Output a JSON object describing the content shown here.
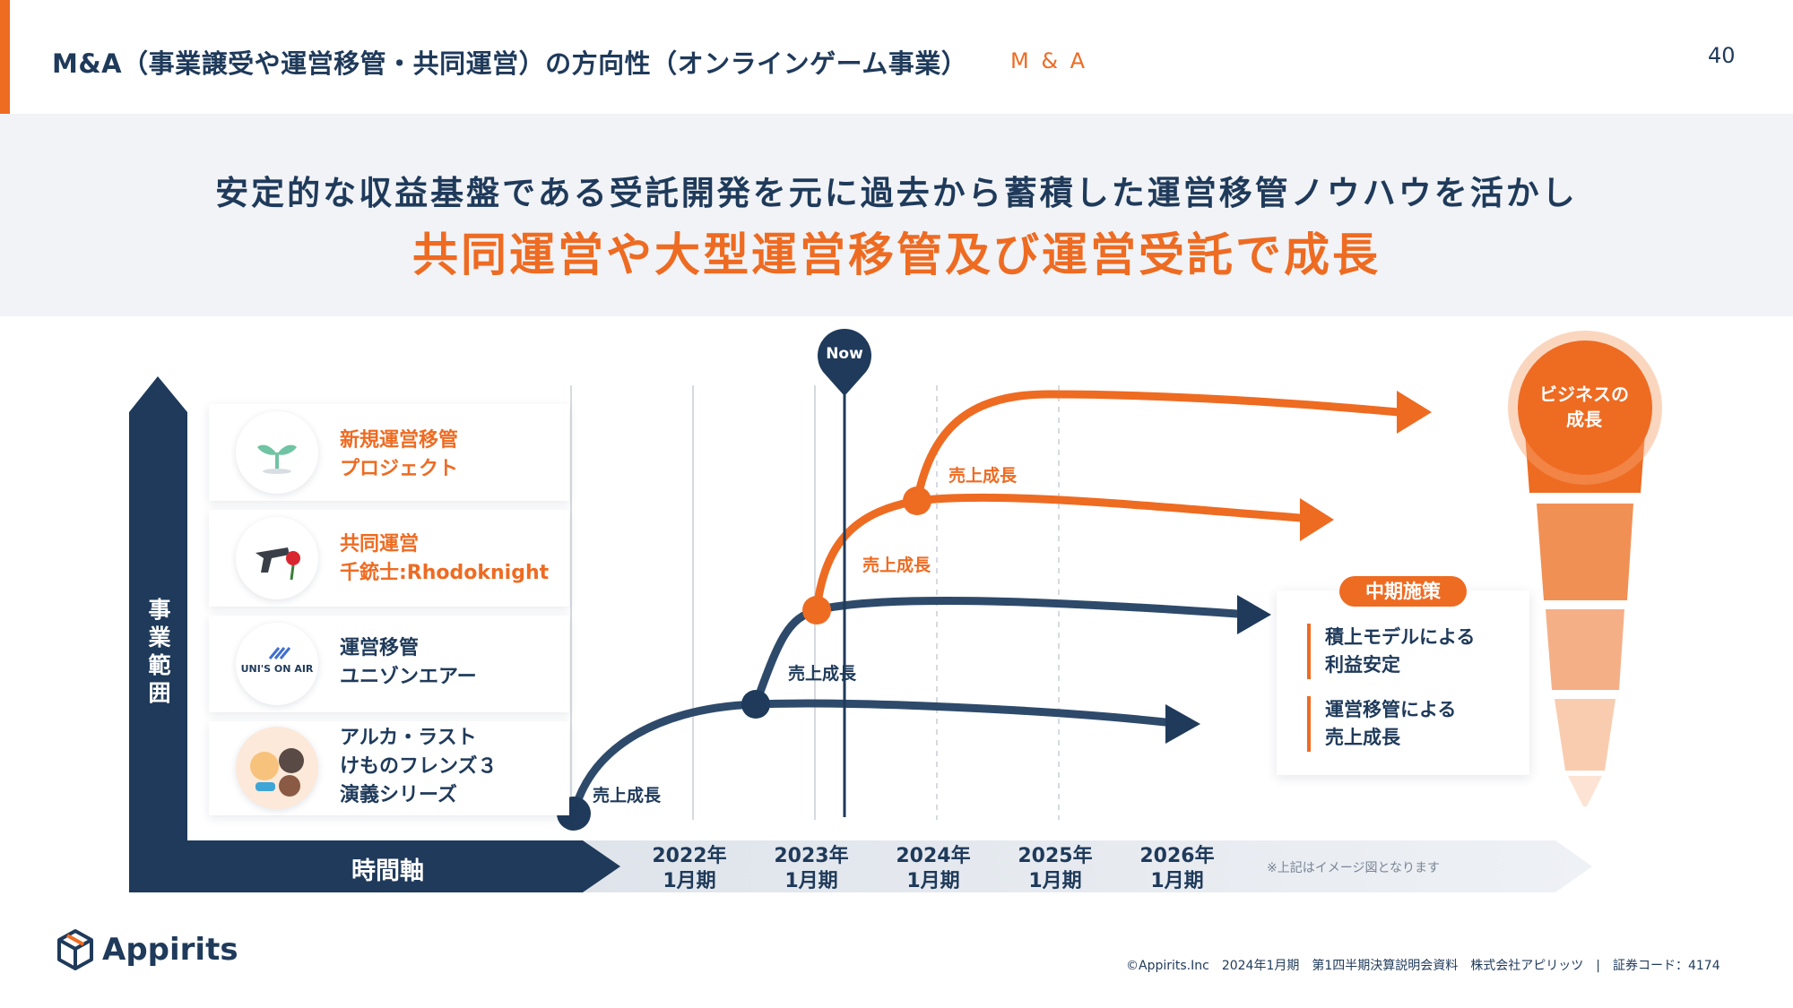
{
  "header": {
    "title": "M&A（事業譲受や運営移管・共同運営）の方向性（オンラインゲーム事業）",
    "tag": "M & A",
    "page_number": "40"
  },
  "lead": {
    "line1": "安定的な収益基盤である受託開発を元に過去から蓄積した運営移管ノウハウを活かし",
    "line2": "共同運営や大型運営移管及び運営受託で成長"
  },
  "rows": [
    {
      "label_line1": "新規運営移管",
      "label_line2": "プロジェクト",
      "icon": "sprout-icon"
    },
    {
      "label_line1": "共同運営",
      "label_line2": "千銃士:Rhodoknight",
      "icon": "gun-rose-icon"
    },
    {
      "label_line1": "運営移管",
      "label_line2": "ユニゾンエアー",
      "icon": "unisonair-logo"
    },
    {
      "label_line1": "アルカ・ラスト",
      "label_line2": "けものフレンズ３",
      "label_line3": "演義シリーズ",
      "icon": "game-characters-icon"
    }
  ],
  "axes": {
    "vertical": "事業範囲",
    "horizontal": "時間軸"
  },
  "years": [
    {
      "line1": "2022年",
      "line2": "1月期"
    },
    {
      "line1": "2023年",
      "line2": "1月期"
    },
    {
      "line1": "2024年",
      "line2": "1月期"
    },
    {
      "line1": "2025年",
      "line2": "1月期"
    },
    {
      "line1": "2026年",
      "line2": "1月期"
    }
  ],
  "now_label": "Now",
  "sales_label": "売上成長",
  "note": "※上記はイメージ図となります",
  "policy": {
    "badge": "中期施策",
    "item1_line1": "積上モデルによる",
    "item1_line2": "利益安定",
    "item2_line1": "運営移管による",
    "item2_line2": "売上成長"
  },
  "growth": {
    "line1": "ビジネスの",
    "line2": "成長"
  },
  "footer": {
    "logo_text": "Appirits",
    "info": "©Appirits.Inc　2024年1月期　第1四半期決算説明会資料　株式会社アピリッツ　|　証券コード：4174"
  },
  "colors": {
    "navy": "#1f3a5a",
    "orange": "#ee6b22",
    "light_bg": "#f1f3f6"
  }
}
